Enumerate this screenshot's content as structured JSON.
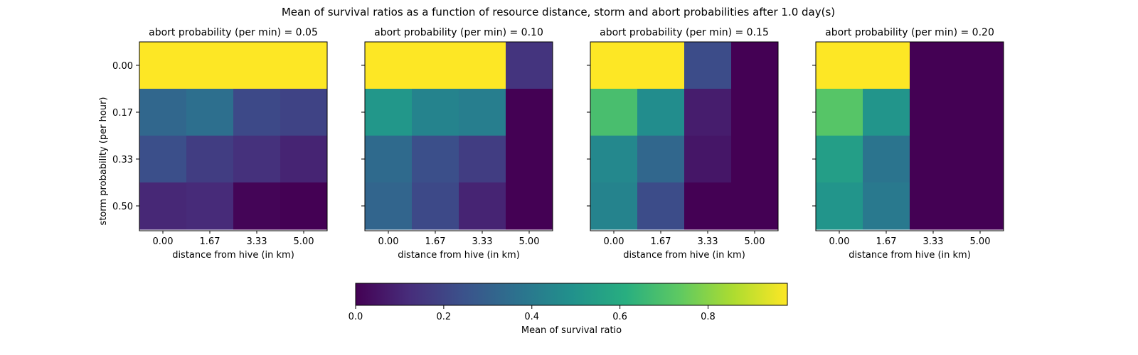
{
  "chart_data": {
    "type": "heatmap",
    "title": "Mean of survival ratios as a function of resource distance, storm and abort probabilities after 1.0 day(s)",
    "xlabel": "distance from hive (in km)",
    "ylabel": "storm probability (per hour)",
    "x_ticks": [
      "0.00",
      "1.67",
      "3.33",
      "5.00"
    ],
    "y_ticks": [
      "0.00",
      "0.17",
      "0.33",
      "0.50"
    ],
    "colormap": "viridis",
    "colorbar": {
      "label": "Mean of survival ratio",
      "range": [
        0,
        0.98
      ],
      "ticks": [
        "0.0",
        "0.2",
        "0.4",
        "0.6",
        "0.8"
      ],
      "tick_values": [
        0,
        0.2,
        0.4,
        0.6,
        0.8
      ]
    },
    "panels": [
      {
        "title": "abort probability (per min) = 0.05",
        "values": [
          [
            0.98,
            0.98,
            0.98,
            0.98
          ],
          [
            0.33,
            0.36,
            0.22,
            0.2
          ],
          [
            0.24,
            0.18,
            0.14,
            0.1
          ],
          [
            0.11,
            0.12,
            0.01,
            0.0
          ]
        ]
      },
      {
        "title": "abort probability (per min) = 0.10",
        "values": [
          [
            0.98,
            0.98,
            0.98,
            0.15
          ],
          [
            0.52,
            0.44,
            0.42,
            0.0
          ],
          [
            0.34,
            0.24,
            0.18,
            0.0
          ],
          [
            0.32,
            0.22,
            0.1,
            0.0
          ]
        ]
      },
      {
        "title": "abort probability (per min) = 0.15",
        "values": [
          [
            0.98,
            0.98,
            0.23,
            0.0
          ],
          [
            0.69,
            0.48,
            0.08,
            0.0
          ],
          [
            0.46,
            0.33,
            0.06,
            0.0
          ],
          [
            0.44,
            0.23,
            0.0,
            0.0
          ]
        ]
      },
      {
        "title": "abort probability (per min) = 0.20",
        "values": [
          [
            0.98,
            0.98,
            0.0,
            0.0
          ],
          [
            0.72,
            0.51,
            0.0,
            0.0
          ],
          [
            0.55,
            0.38,
            0.0,
            0.0
          ],
          [
            0.51,
            0.4,
            0.0,
            0.0
          ]
        ]
      }
    ]
  }
}
